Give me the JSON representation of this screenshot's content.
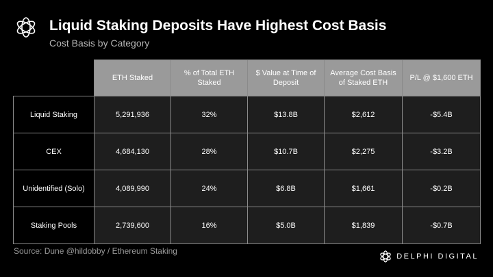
{
  "header": {
    "title": "Liquid Staking Deposits Have Highest Cost Basis",
    "subtitle": "Cost Basis by Category"
  },
  "chart_data": {
    "type": "table",
    "title": "Liquid Staking Deposits Have Highest Cost Basis",
    "subtitle": "Cost Basis by Category",
    "columns": [
      "ETH Staked",
      "% of Total ETH Staked",
      "$ Value at Time of Deposit",
      "Average Cost Basis of Staked ETH",
      "P/L @ $1,600 ETH"
    ],
    "rows": [
      {
        "label": "Liquid Staking",
        "cells": [
          "5,291,936",
          "32%",
          "$13.8B",
          "$2,612",
          "-$5.4B"
        ]
      },
      {
        "label": "CEX",
        "cells": [
          "4,684,130",
          "28%",
          "$10.7B",
          "$2,275",
          "-$3.2B"
        ]
      },
      {
        "label": "Unidentified (Solo)",
        "cells": [
          "4,089,990",
          "24%",
          "$6.8B",
          "$1,661",
          "-$0.2B"
        ]
      },
      {
        "label": "Staking Pools",
        "cells": [
          "2,739,600",
          "16%",
          "$5.0B",
          "$1,839",
          "-$0.7B"
        ]
      }
    ]
  },
  "footer": {
    "source": "Source: Dune @hildobby / Ethereum Staking",
    "brand": "DELPHI DIGITAL"
  },
  "colors": {
    "background": "#000000",
    "header_fill": "#9a9a9a",
    "cell_fill": "#1e1e1e",
    "border": "#8a8a8a"
  },
  "icons": {
    "logo": "delphi-flower-logo-icon",
    "brand": "delphi-mark-icon"
  }
}
